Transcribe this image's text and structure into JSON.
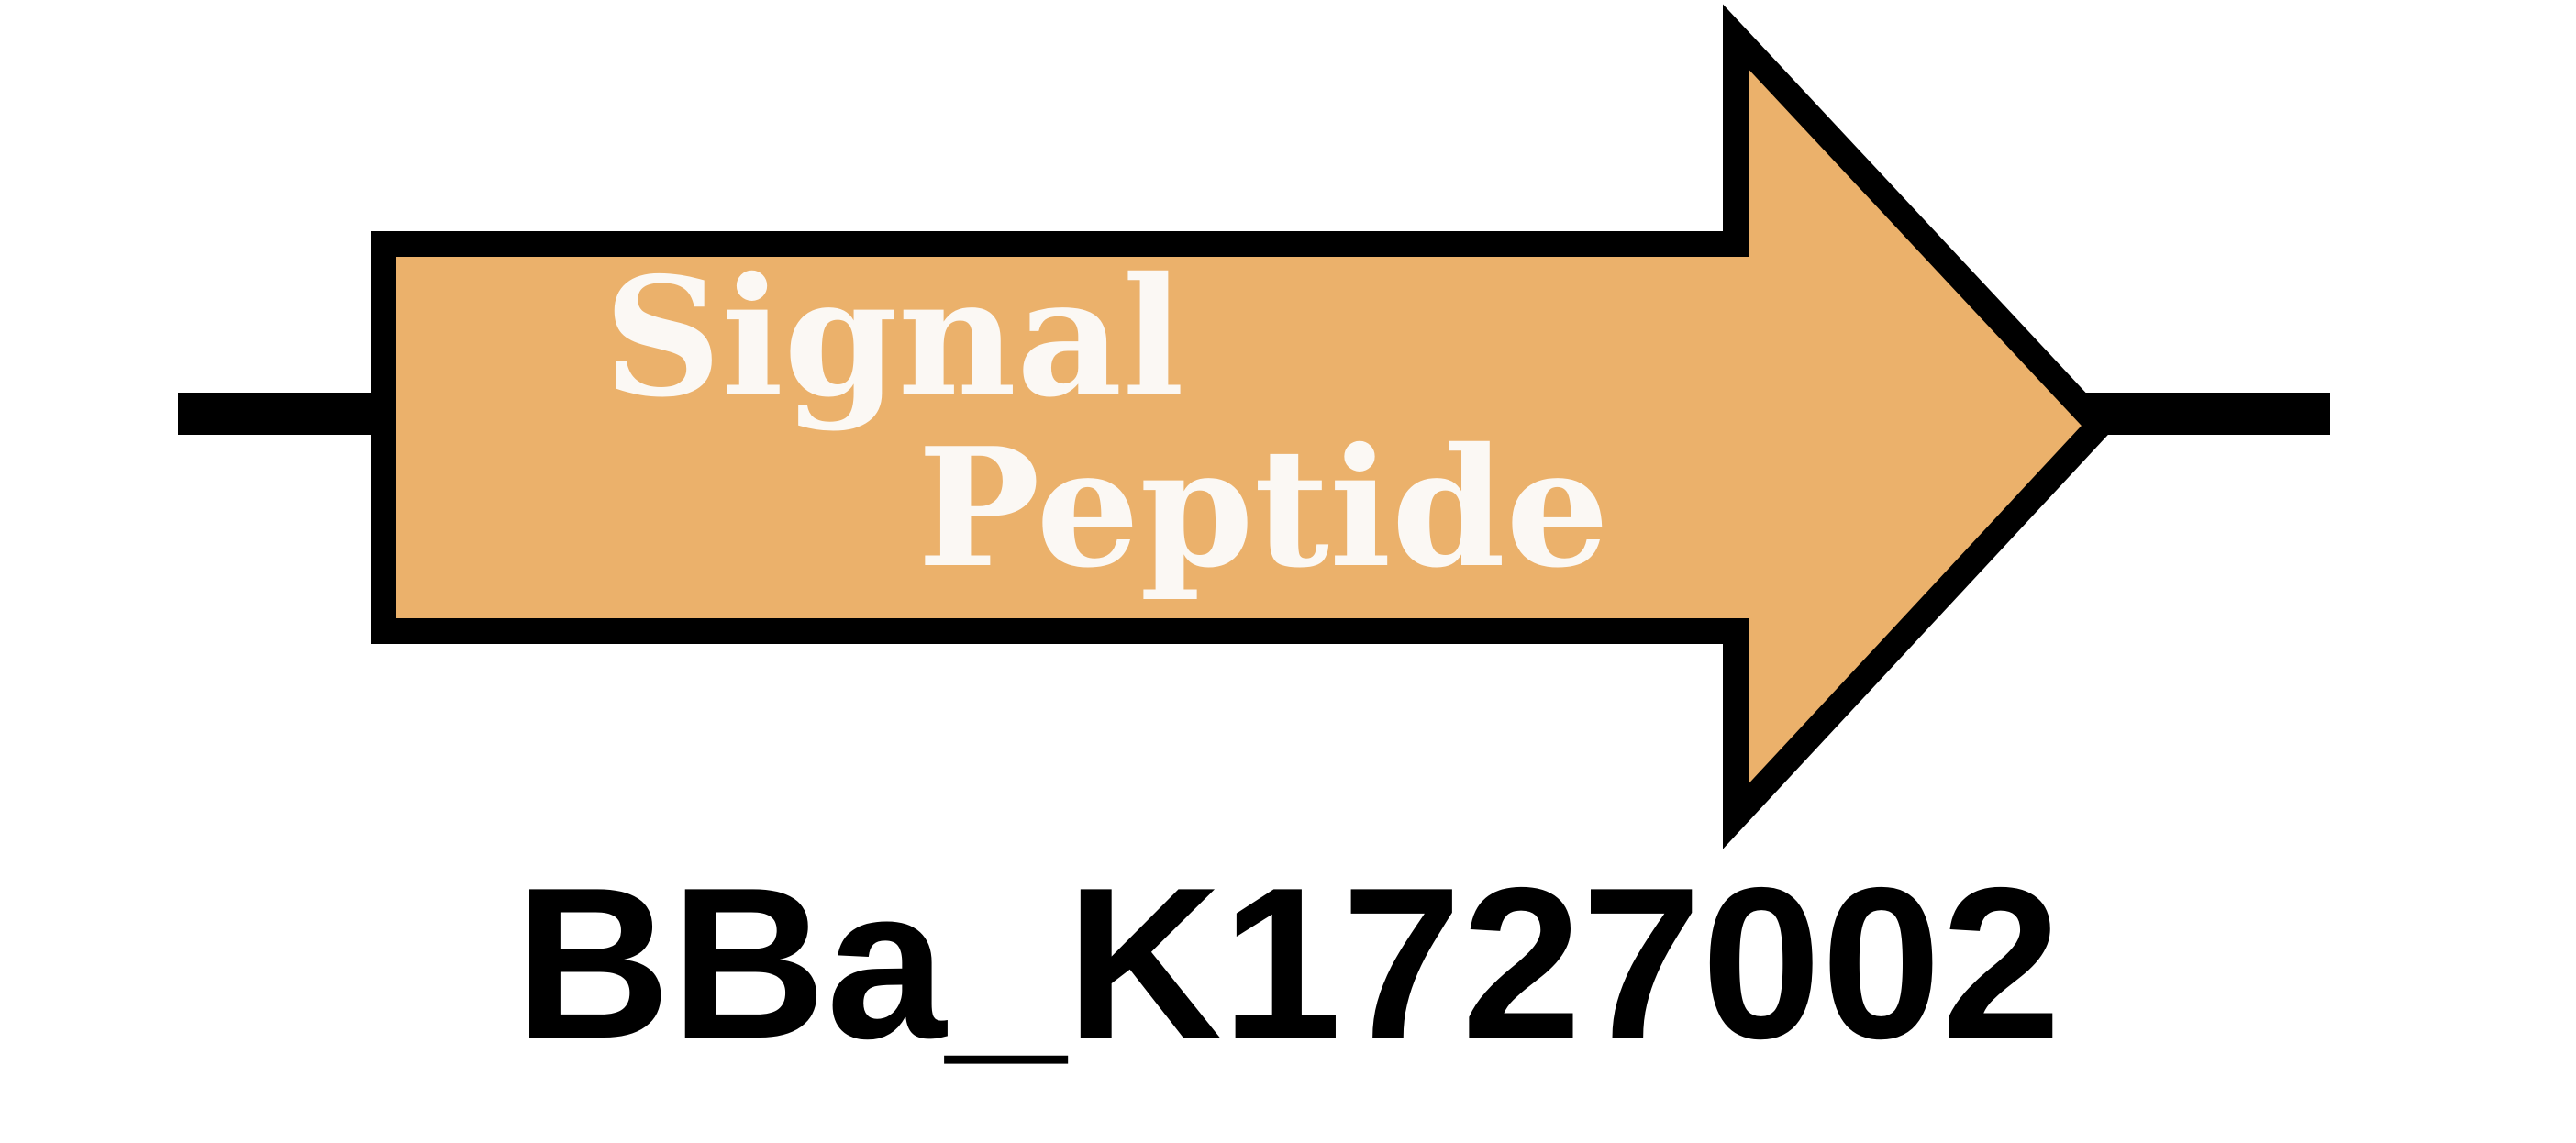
{
  "diagram": {
    "part_label_line1": "Signal",
    "part_label_line2": "Peptide",
    "part_id": "BBa_K1727002"
  },
  "colors": {
    "arrow_fill": "#EBB16B",
    "outline": "#000000",
    "label_text": "#FBF8F4",
    "background": "#FFFFFF"
  }
}
